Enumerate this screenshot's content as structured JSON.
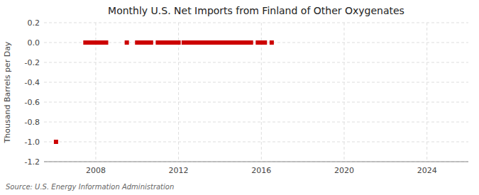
{
  "chart_data": {
    "type": "scatter",
    "title": "Monthly U.S. Net Imports from Finland of Other Oxygenates",
    "y_label": "Thousand Barrels per Day",
    "annotations": [
      "Source: U.S. Energy Information Administration"
    ],
    "color": "#cc0000",
    "marker": "square",
    "grid": true,
    "xlim": [
      2005.5,
      2026.0
    ],
    "xticks": [
      2008,
      2012,
      2016,
      2020,
      2024
    ],
    "ylim": [
      -1.2,
      0.2
    ],
    "yticks": [
      0.2,
      {
        "value": 0.0,
        "label": "0.0"
      },
      -0.2,
      -0.4,
      -0.6,
      -0.8,
      {
        "value": -1.0,
        "label": "-1.0"
      },
      -1.2
    ],
    "x": [
      2006.08,
      2007.5,
      2007.67,
      2007.83,
      2008.0,
      2008.08,
      2008.17,
      2008.25,
      2008.33,
      2008.5,
      2009.5,
      2010.0,
      2010.17,
      2010.33,
      2010.5,
      2010.67,
      2011.0,
      2011.17,
      2011.25,
      2011.33,
      2011.5,
      2011.67,
      2011.75,
      2011.83,
      2012.0,
      2012.25,
      2012.33,
      2012.5,
      2012.67,
      2012.83,
      2013.0,
      2013.08,
      2013.17,
      2013.33,
      2013.5,
      2013.67,
      2013.75,
      2013.83,
      2014.0,
      2014.17,
      2014.33,
      2014.5,
      2014.67,
      2014.83,
      2015.0,
      2015.17,
      2015.33,
      2015.5,
      2015.83,
      2016.0,
      2016.17,
      2016.5
    ],
    "values": [
      -1.0,
      0.0,
      0.0,
      0.0,
      0.0,
      0.0,
      0.0,
      0.0,
      0.0,
      0.0,
      0.0,
      0.0,
      0.0,
      0.0,
      0.0,
      0.0,
      0.0,
      0.0,
      0.0,
      0.0,
      0.0,
      0.0,
      0.0,
      0.0,
      0.0,
      0.0,
      0.0,
      0.0,
      0.0,
      0.0,
      0.0,
      0.0,
      0.0,
      0.0,
      0.0,
      0.0,
      0.0,
      0.0,
      0.0,
      0.0,
      0.0,
      0.0,
      0.0,
      0.0,
      0.0,
      0.0,
      0.0,
      0.0,
      0.0,
      0.0,
      0.0,
      0.0
    ]
  }
}
